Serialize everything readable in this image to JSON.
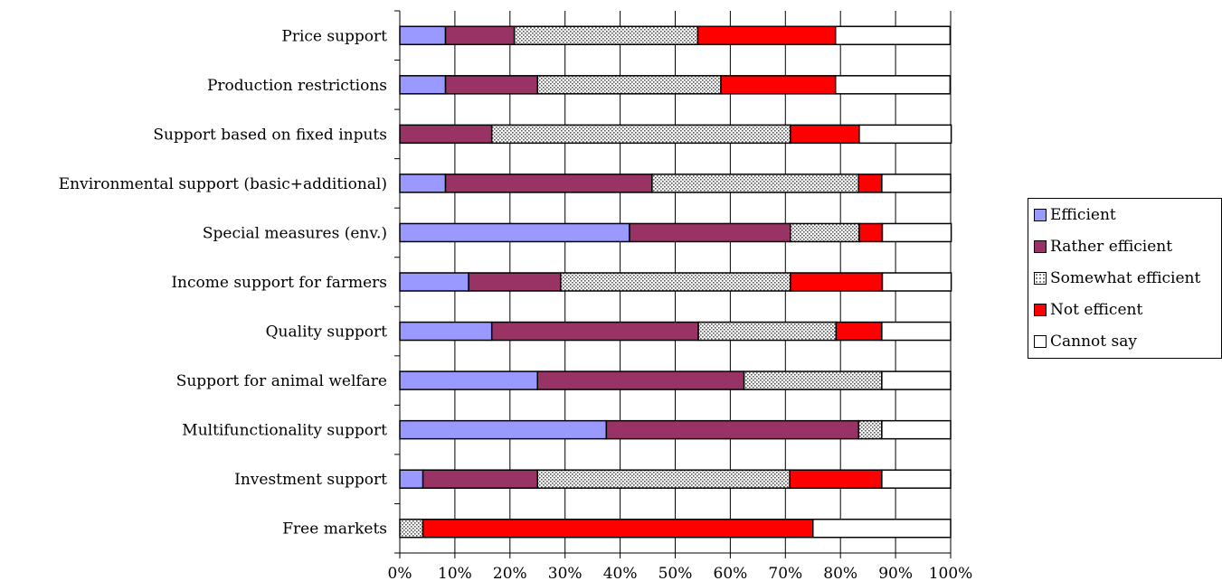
{
  "chart_data": {
    "type": "bar",
    "orientation": "horizontal",
    "stacked": "percent",
    "categories": [
      "Price support",
      "Production restrictions",
      "Support based on fixed inputs",
      "Environmental support (basic+additional)",
      "Special measures (env.)",
      "Income support for farmers",
      "Quality support",
      "Support for animal welfare",
      "Multifunctionality support",
      "Investment support",
      "Free markets"
    ],
    "series": [
      {
        "name": "Efficient",
        "color": "#9999ff",
        "pattern": "solid",
        "values": [
          8.3,
          8.3,
          0,
          8.3,
          41.7,
          12.5,
          16.7,
          25.0,
          37.5,
          4.2,
          0
        ]
      },
      {
        "name": "Rather efficient",
        "color": "#993366",
        "pattern": "solid",
        "values": [
          12.5,
          16.7,
          16.7,
          37.5,
          29.2,
          16.7,
          37.5,
          37.5,
          45.8,
          20.8,
          0
        ]
      },
      {
        "name": "Somewhat efficient",
        "color": "#cccccc",
        "pattern": "dotted",
        "values": [
          33.3,
          33.3,
          54.2,
          37.5,
          12.5,
          41.7,
          25.0,
          25.0,
          4.2,
          45.8,
          4.2
        ]
      },
      {
        "name": "Not efficent",
        "color": "#ff0000",
        "pattern": "solid",
        "values": [
          25.0,
          20.8,
          12.5,
          4.2,
          4.2,
          16.7,
          8.3,
          0,
          0,
          16.7,
          70.8
        ]
      },
      {
        "name": "Cannot say",
        "color": "#ffffff",
        "pattern": "solid",
        "values": [
          20.8,
          20.8,
          16.7,
          12.5,
          12.5,
          12.5,
          12.5,
          12.5,
          12.5,
          12.5,
          25.0
        ]
      }
    ],
    "x_ticks": [
      "0%",
      "10%",
      "20%",
      "30%",
      "40%",
      "50%",
      "60%",
      "70%",
      "80%",
      "90%",
      "100%"
    ],
    "xlim": [
      0,
      100
    ],
    "grid": "vertical",
    "legend": "right"
  }
}
